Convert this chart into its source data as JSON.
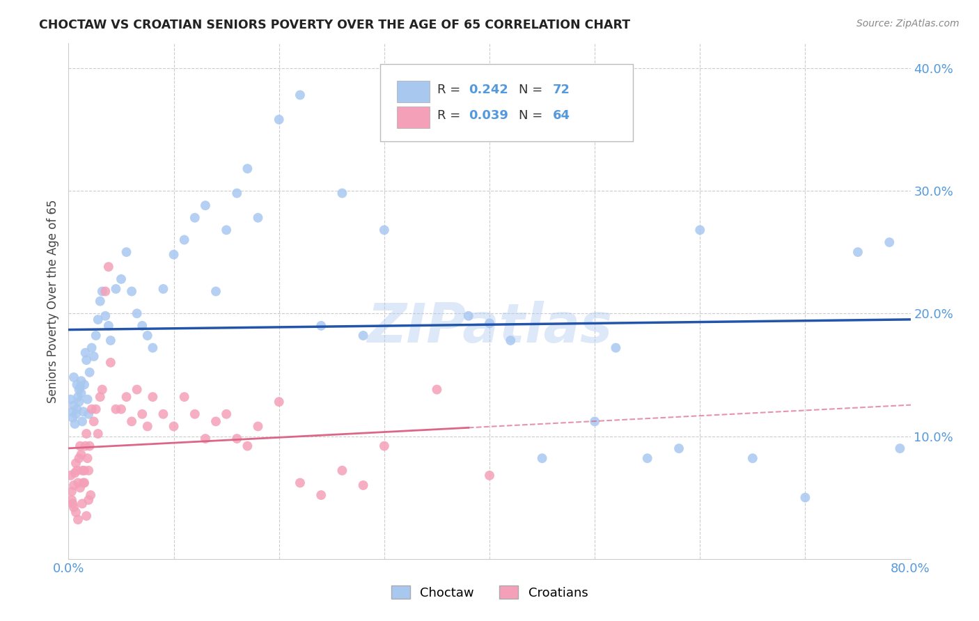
{
  "title": "CHOCTAW VS CROATIAN SENIORS POVERTY OVER THE AGE OF 65 CORRELATION CHART",
  "source": "Source: ZipAtlas.com",
  "ylabel": "Seniors Poverty Over the Age of 65",
  "choctaw_R": 0.242,
  "choctaw_N": 72,
  "croatian_R": 0.039,
  "croatian_N": 64,
  "choctaw_color": "#a8c8f0",
  "croatian_color": "#f4a0b8",
  "choctaw_line_color": "#2255aa",
  "croatian_line_color": "#dd6688",
  "watermark": "ZIPatlas",
  "xlim": [
    0.0,
    0.8
  ],
  "ylim": [
    0.0,
    0.42
  ],
  "choctaw_x": [
    0.002,
    0.003,
    0.004,
    0.005,
    0.006,
    0.007,
    0.008,
    0.009,
    0.01,
    0.011,
    0.012,
    0.013,
    0.014,
    0.015,
    0.016,
    0.017,
    0.018,
    0.019,
    0.02,
    0.022,
    0.024,
    0.026,
    0.028,
    0.03,
    0.032,
    0.035,
    0.038,
    0.04,
    0.045,
    0.05,
    0.055,
    0.06,
    0.065,
    0.07,
    0.075,
    0.08,
    0.09,
    0.1,
    0.11,
    0.12,
    0.13,
    0.14,
    0.15,
    0.16,
    0.17,
    0.18,
    0.2,
    0.22,
    0.24,
    0.26,
    0.28,
    0.3,
    0.32,
    0.35,
    0.38,
    0.4,
    0.42,
    0.45,
    0.5,
    0.52,
    0.55,
    0.58,
    0.6,
    0.65,
    0.7,
    0.75,
    0.78,
    0.79,
    0.005,
    0.008,
    0.01,
    0.012
  ],
  "choctaw_y": [
    0.13,
    0.12,
    0.115,
    0.125,
    0.11,
    0.118,
    0.122,
    0.132,
    0.128,
    0.14,
    0.135,
    0.112,
    0.12,
    0.142,
    0.168,
    0.162,
    0.13,
    0.118,
    0.152,
    0.172,
    0.165,
    0.182,
    0.195,
    0.21,
    0.218,
    0.198,
    0.19,
    0.178,
    0.22,
    0.228,
    0.25,
    0.218,
    0.2,
    0.19,
    0.182,
    0.172,
    0.22,
    0.248,
    0.26,
    0.278,
    0.288,
    0.218,
    0.268,
    0.298,
    0.318,
    0.278,
    0.358,
    0.378,
    0.19,
    0.298,
    0.182,
    0.268,
    0.358,
    0.348,
    0.198,
    0.192,
    0.178,
    0.082,
    0.112,
    0.172,
    0.082,
    0.09,
    0.268,
    0.082,
    0.05,
    0.25,
    0.258,
    0.09,
    0.148,
    0.142,
    0.138,
    0.145
  ],
  "croatian_x": [
    0.002,
    0.003,
    0.004,
    0.005,
    0.006,
    0.007,
    0.008,
    0.009,
    0.01,
    0.011,
    0.012,
    0.013,
    0.014,
    0.015,
    0.016,
    0.017,
    0.018,
    0.019,
    0.02,
    0.022,
    0.024,
    0.026,
    0.028,
    0.03,
    0.032,
    0.035,
    0.038,
    0.04,
    0.045,
    0.05,
    0.055,
    0.06,
    0.065,
    0.07,
    0.075,
    0.08,
    0.09,
    0.1,
    0.11,
    0.12,
    0.13,
    0.14,
    0.15,
    0.16,
    0.17,
    0.18,
    0.2,
    0.22,
    0.24,
    0.26,
    0.28,
    0.3,
    0.35,
    0.4,
    0.003,
    0.005,
    0.007,
    0.009,
    0.011,
    0.013,
    0.015,
    0.017,
    0.019,
    0.021
  ],
  "croatian_y": [
    0.068,
    0.055,
    0.045,
    0.06,
    0.07,
    0.078,
    0.072,
    0.062,
    0.082,
    0.092,
    0.085,
    0.072,
    0.062,
    0.072,
    0.092,
    0.102,
    0.082,
    0.072,
    0.092,
    0.122,
    0.112,
    0.122,
    0.102,
    0.132,
    0.138,
    0.218,
    0.238,
    0.16,
    0.122,
    0.122,
    0.132,
    0.112,
    0.138,
    0.118,
    0.108,
    0.132,
    0.118,
    0.108,
    0.132,
    0.118,
    0.098,
    0.112,
    0.118,
    0.098,
    0.092,
    0.108,
    0.128,
    0.062,
    0.052,
    0.072,
    0.06,
    0.092,
    0.138,
    0.068,
    0.048,
    0.042,
    0.038,
    0.032,
    0.058,
    0.045,
    0.062,
    0.035,
    0.048,
    0.052
  ]
}
